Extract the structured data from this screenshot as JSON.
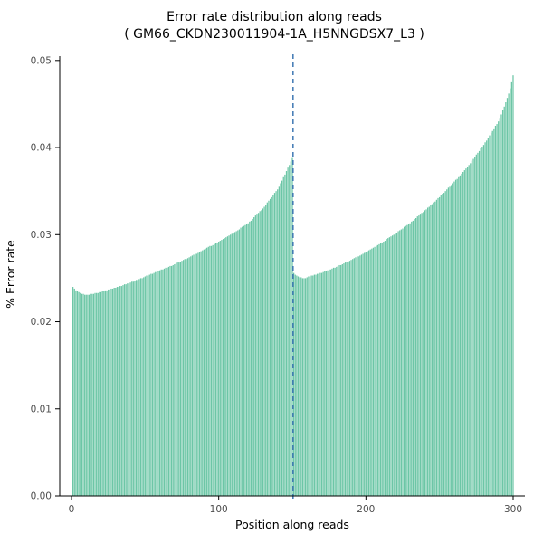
{
  "figure": {
    "title": "Error rate distribution along reads",
    "subtitle": "( GM66_CKDN230011904-1A_H5NNGDSX7_L3 )"
  },
  "chart_data": {
    "type": "bar",
    "title": "Error rate distribution along reads",
    "subtitle": "( GM66_CKDN230011904-1A_H5NNGDSX7_L3 )",
    "xlabel": "Position along reads",
    "ylabel": "% Error rate",
    "xlim": [
      -8,
      308
    ],
    "ylim": [
      0,
      0.0505
    ],
    "x_ticks": [
      0,
      100,
      200,
      300
    ],
    "y_ticks": [
      0.0,
      0.01,
      0.02,
      0.03,
      0.04,
      0.05
    ],
    "grid": false,
    "legend": "none",
    "bar_color": "#6cc6a6",
    "axis_color": "#000000",
    "tick_label_color": "#4d4d4d",
    "vline": {
      "x": 150.5,
      "color": "#3f78b3",
      "style": "dashed"
    },
    "x_start": 1,
    "values": [
      0.024,
      0.0238,
      0.0236,
      0.0235,
      0.0234,
      0.0233,
      0.0232,
      0.0232,
      0.0231,
      0.0231,
      0.0231,
      0.0231,
      0.0232,
      0.0232,
      0.0232,
      0.0233,
      0.0233,
      0.0233,
      0.0234,
      0.0234,
      0.0235,
      0.0235,
      0.0236,
      0.0236,
      0.0237,
      0.0237,
      0.0238,
      0.0238,
      0.0239,
      0.0239,
      0.024,
      0.024,
      0.0241,
      0.0241,
      0.0242,
      0.0243,
      0.0243,
      0.0244,
      0.0244,
      0.0245,
      0.0246,
      0.0246,
      0.0247,
      0.0248,
      0.0248,
      0.0249,
      0.025,
      0.025,
      0.0251,
      0.0252,
      0.0253,
      0.0253,
      0.0254,
      0.0255,
      0.0255,
      0.0256,
      0.0257,
      0.0257,
      0.0258,
      0.0259,
      0.026,
      0.026,
      0.0261,
      0.0262,
      0.0262,
      0.0263,
      0.0264,
      0.0264,
      0.0265,
      0.0266,
      0.0267,
      0.0268,
      0.0268,
      0.0269,
      0.027,
      0.0271,
      0.0272,
      0.0272,
      0.0273,
      0.0274,
      0.0275,
      0.0276,
      0.0277,
      0.0278,
      0.0278,
      0.0279,
      0.028,
      0.0281,
      0.0282,
      0.0283,
      0.0284,
      0.0285,
      0.0286,
      0.0287,
      0.0287,
      0.0288,
      0.0289,
      0.029,
      0.0291,
      0.0292,
      0.0293,
      0.0294,
      0.0295,
      0.0296,
      0.0297,
      0.0298,
      0.0299,
      0.03,
      0.0301,
      0.0302,
      0.0303,
      0.0304,
      0.0305,
      0.0306,
      0.0308,
      0.0309,
      0.031,
      0.0311,
      0.0312,
      0.0313,
      0.0315,
      0.0316,
      0.0318,
      0.032,
      0.0322,
      0.0323,
      0.0325,
      0.0327,
      0.0328,
      0.033,
      0.0332,
      0.0334,
      0.0337,
      0.0339,
      0.0341,
      0.0343,
      0.0345,
      0.0348,
      0.035,
      0.0352,
      0.0355,
      0.0359,
      0.0362,
      0.0366,
      0.0369,
      0.0373,
      0.0377,
      0.038,
      0.0384,
      0.0388,
      0.0256,
      0.0254,
      0.0253,
      0.0252,
      0.0251,
      0.0251,
      0.025,
      0.025,
      0.025,
      0.0251,
      0.0252,
      0.0252,
      0.0253,
      0.0253,
      0.0254,
      0.0254,
      0.0255,
      0.0255,
      0.0256,
      0.0256,
      0.0257,
      0.0258,
      0.0258,
      0.0259,
      0.026,
      0.026,
      0.0261,
      0.0262,
      0.0262,
      0.0263,
      0.0264,
      0.0265,
      0.0265,
      0.0266,
      0.0267,
      0.0268,
      0.0269,
      0.0269,
      0.027,
      0.0271,
      0.0272,
      0.0273,
      0.0274,
      0.0275,
      0.0275,
      0.0276,
      0.0277,
      0.0278,
      0.0279,
      0.028,
      0.0281,
      0.0282,
      0.0283,
      0.0284,
      0.0285,
      0.0286,
      0.0287,
      0.0288,
      0.0289,
      0.029,
      0.0291,
      0.0292,
      0.0293,
      0.0295,
      0.0296,
      0.0297,
      0.0298,
      0.0299,
      0.03,
      0.0301,
      0.0302,
      0.0304,
      0.0305,
      0.0306,
      0.0307,
      0.0309,
      0.031,
      0.0311,
      0.0312,
      0.0313,
      0.0315,
      0.0316,
      0.0318,
      0.0319,
      0.0321,
      0.0322,
      0.0323,
      0.0325,
      0.0326,
      0.0328,
      0.0329,
      0.0331,
      0.0332,
      0.0334,
      0.0335,
      0.0337,
      0.0338,
      0.034,
      0.0342,
      0.0343,
      0.0345,
      0.0347,
      0.0348,
      0.035,
      0.0352,
      0.0354,
      0.0355,
      0.0357,
      0.0359,
      0.0361,
      0.0363,
      0.0364,
      0.0366,
      0.0368,
      0.037,
      0.0372,
      0.0374,
      0.0376,
      0.0378,
      0.038,
      0.0382,
      0.0385,
      0.0387,
      0.0389,
      0.0392,
      0.0394,
      0.0396,
      0.0399,
      0.0401,
      0.0403,
      0.0406,
      0.0408,
      0.0411,
      0.0414,
      0.0417,
      0.0419,
      0.0422,
      0.0425,
      0.0427,
      0.043,
      0.0434,
      0.0438,
      0.0443,
      0.0447,
      0.0452,
      0.0457,
      0.0462,
      0.0468,
      0.0475,
      0.0483
    ]
  }
}
